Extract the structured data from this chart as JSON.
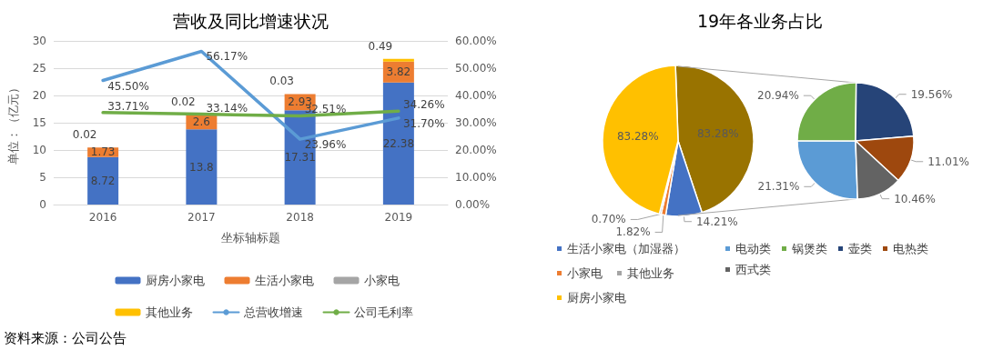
{
  "chart_data": [
    {
      "type": "bar",
      "title": "营收及同比增速状况",
      "xlabel": "坐标轴标题",
      "ylabel": "单位：（亿元）",
      "categories": [
        "2016",
        "2017",
        "2018",
        "2019"
      ],
      "stacked": true,
      "data_labels": true,
      "series": [
        {
          "name": "厨房小家电",
          "color": "#4472c4",
          "values": [
            8.72,
            13.8,
            17.31,
            22.38
          ]
        },
        {
          "name": "生活小家电",
          "color": "#ed7d31",
          "values": [
            1.73,
            2.6,
            2.93,
            3.82
          ]
        },
        {
          "name": "小家电",
          "color": "#a5a5a5",
          "values": [
            null,
            null,
            null,
            null
          ]
        },
        {
          "name": "其他业务",
          "color": "#ffc000",
          "values": [
            0.02,
            0.02,
            0.03,
            0.49
          ]
        },
        {
          "name": "总营收增速",
          "type": "line",
          "axis": "y2",
          "color": "#5b9bd5",
          "values": [
            45.5,
            56.17,
            23.96,
            31.7
          ],
          "value_labels": [
            "45.50%",
            "56.17%",
            "23.96%",
            "31.70%"
          ]
        },
        {
          "name": "公司毛利率",
          "type": "line",
          "axis": "y2",
          "color": "#70ad47",
          "values": [
            33.71,
            33.14,
            32.51,
            34.26
          ],
          "value_labels": [
            "33.71%",
            "33.14%",
            "32.51%",
            "34.26%"
          ]
        }
      ],
      "ylim": [
        0,
        30
      ],
      "yticks": [
        0,
        5,
        10,
        15,
        20,
        25,
        30
      ],
      "y2lim": [
        0,
        60
      ],
      "y2ticks": [
        {
          "value": 0,
          "label": "0.00%"
        },
        {
          "value": 10,
          "label": "10.00%"
        },
        {
          "value": 20,
          "label": "20.00%"
        },
        {
          "value": 30,
          "label": "30.00%"
        },
        {
          "value": 40,
          "label": "40.00%"
        },
        {
          "value": 50,
          "label": "50.00%"
        },
        {
          "value": 60,
          "label": "60.00%"
        }
      ],
      "grid": "y",
      "legend": "bottom",
      "marker": "none",
      "line_style": "solid",
      "annotations": [
        "资料来源：公司公告"
      ]
    },
    {
      "type": "pie",
      "title": "19年各业务占比",
      "categories": [
        null,
        "生活小家电（加湿器）",
        "小家电",
        "其他业务",
        "厨房小家电"
      ],
      "values": [
        83.28,
        14.21,
        1.82,
        0.7,
        83.28
      ],
      "colors": [
        "#997300",
        "#4472c4",
        "#ed7d31",
        "#a5a5a5",
        "#ffc000"
      ],
      "value_labels": [
        "83.28%",
        "14.21%",
        "1.82%",
        "0.70%",
        "83.28%"
      ],
      "legend": "bottom"
    },
    {
      "type": "pie",
      "categories": [
        "电动类",
        "锅煲类",
        "壶类",
        "电热类",
        "西式类"
      ],
      "values": [
        21.31,
        20.94,
        19.56,
        11.01,
        10.46
      ],
      "colors": [
        "#5b9bd5",
        "#70ad47",
        "#264478",
        "#9e480e",
        "#636363"
      ],
      "value_labels": [
        "21.31%",
        "20.94%",
        "19.56%",
        "11.01%",
        "10.46%"
      ],
      "legend": "bottom"
    }
  ]
}
